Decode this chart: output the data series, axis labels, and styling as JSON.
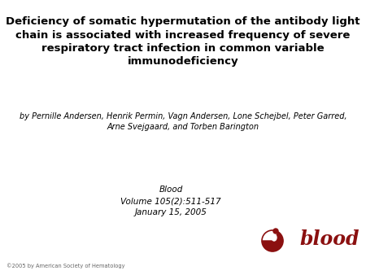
{
  "title_line1": "Deficiency of somatic hypermutation of the antibody light",
  "title_line2": "chain is associated with increased frequency of severe",
  "title_line3": "respiratory tract infection in common variable",
  "title_line4": "immunodeficiency",
  "authors_line1": "by Pernille Andersen, Henrik Permin, Vagn Andersen, Lone Schejbel, Peter Garred,",
  "authors_line2": "Arne Svejgaard, and Torben Barington",
  "journal_line1": "Blood",
  "journal_line2": "Volume 105(2):511-517",
  "journal_line3": "January 15, 2005",
  "copyright": "©2005 by American Society of Hematology",
  "blood_text": "blood",
  "blood_color": "#8B1010",
  "background_color": "#ffffff",
  "title_fontsize": 9.5,
  "authors_fontsize": 7.0,
  "journal_fontsize": 7.5,
  "copyright_fontsize": 4.8,
  "blood_logo_fontsize": 17
}
